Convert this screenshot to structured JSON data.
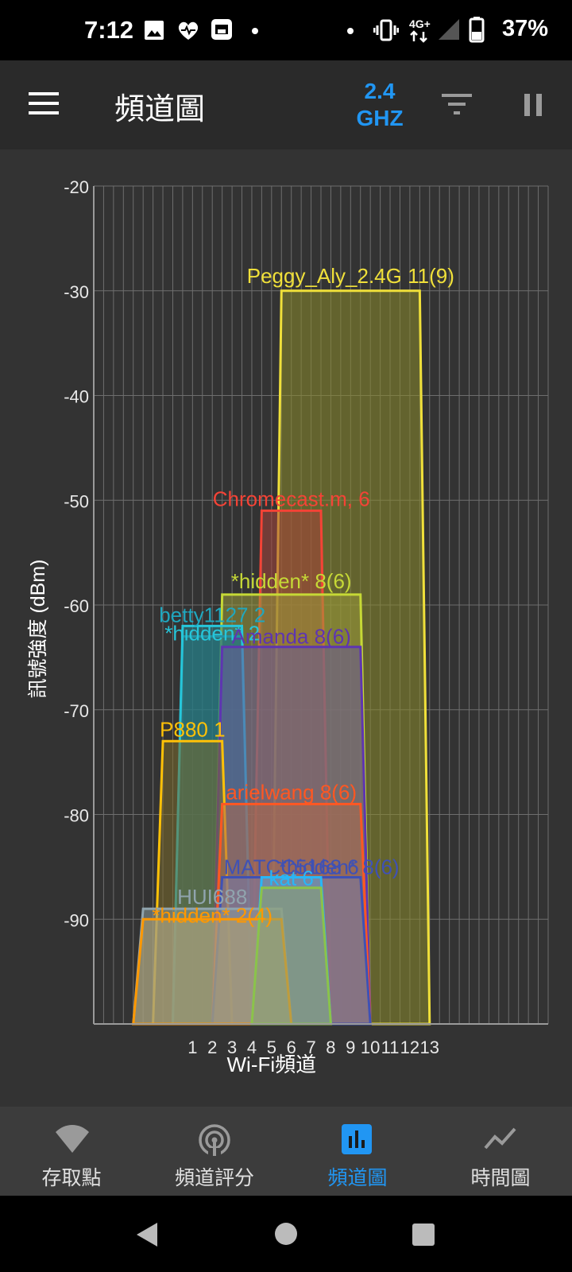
{
  "status_bar": {
    "time": "7:12",
    "network": "4G+",
    "battery": "37%",
    "icons": [
      "image-icon",
      "heartbeat-icon",
      "store-icon",
      "dot-icon",
      "dot-icon",
      "vibrate-icon",
      "signal-icon",
      "battery-icon"
    ]
  },
  "app_bar": {
    "title": "頻道圖",
    "band_line1": "2.4",
    "band_line2": "GHZ",
    "band_color": "#2196f3"
  },
  "chart_data": {
    "type": "area",
    "ylabel": "訊號強度 (dBm)",
    "xlabel": "Wi-Fi頻道",
    "y_ticks": [
      "-20",
      "-30",
      "-40",
      "-50",
      "-60",
      "-70",
      "-80",
      "-90"
    ],
    "ylim": [
      -100,
      -20
    ],
    "x_ticks": [
      "1",
      "2",
      "3",
      "4",
      "5",
      "6",
      "7",
      "8",
      "9",
      "10",
      "11",
      "12",
      "13"
    ],
    "xlim": [
      -4,
      19
    ],
    "grid": true,
    "series": [
      {
        "name": "Peggy_Aly_2.4G 11(9)",
        "center": 9,
        "width": 8,
        "signal": -30,
        "color": "#f0e03a",
        "fill": "#8a8a2a"
      },
      {
        "name": "Chromecast.m, 6",
        "center": 6,
        "width": 4,
        "signal": -51,
        "color": "#f44336",
        "fill": "#a8443a"
      },
      {
        "name": "*hidden* 8(6)",
        "center": 6,
        "width": 8,
        "signal": -59,
        "color": "#c6d936",
        "fill": "#9a9a3a"
      },
      {
        "name": "betty1127 2",
        "center": 2,
        "width": 4,
        "signal": -63,
        "color": "#1fa7bf",
        "fill": "#1f6e77"
      },
      {
        "name": "*hidden* 2",
        "center": 2,
        "width": 4,
        "signal": -62,
        "color": "#26c6da",
        "fill": "#2a7f88"
      },
      {
        "name": "Amanda 8(6)",
        "center": 6,
        "width": 8,
        "signal": -64,
        "color": "#5e35b1",
        "fill": "#6a5a9a"
      },
      {
        "name": "P880 1",
        "center": 1,
        "width": 4,
        "signal": -73,
        "color": "#ffc107",
        "fill": "#7a6a2a"
      },
      {
        "name": "arielwang 8(6)",
        "center": 6,
        "width": 8,
        "signal": -79,
        "color": "#ff5722",
        "fill": "#b06a4a"
      },
      {
        "name": "MATCC5168 6",
        "center": 6,
        "width": 4,
        "signal": -86,
        "color": "#3f51b5",
        "fill": "#7a7aa5"
      },
      {
        "name": "*hidden* 8(6)",
        "center": 6,
        "width": 8,
        "signal": -86,
        "color": "#3f51b5",
        "fill": "#7a7aa5"
      },
      {
        "name": "kat 6",
        "center": 6,
        "width": 4,
        "signal": -86,
        "color": "#29b6f6",
        "fill": "#6a9ab5"
      },
      {
        "name": "HUI688",
        "center": 2,
        "width": 8,
        "signal": -89,
        "color": "#90a4ae",
        "fill": "#8a9a9a"
      },
      {
        "name": "*hidden* 2(4)",
        "center": 2,
        "width": 8,
        "signal": -90,
        "color": "#ff9800",
        "fill": "#b0a070"
      },
      {
        "name": "",
        "center": 6,
        "width": 4,
        "signal": -87,
        "color": "#8bc34a",
        "fill": "#8aa070"
      }
    ]
  },
  "bottom_nav": {
    "items": [
      {
        "label": "存取點",
        "icon": "wifi-icon",
        "active": false
      },
      {
        "label": "頻道評分",
        "icon": "radar-icon",
        "active": false
      },
      {
        "label": "頻道圖",
        "icon": "bar-chart-icon",
        "active": true
      },
      {
        "label": "時間圖",
        "icon": "line-chart-icon",
        "active": false
      }
    ]
  }
}
